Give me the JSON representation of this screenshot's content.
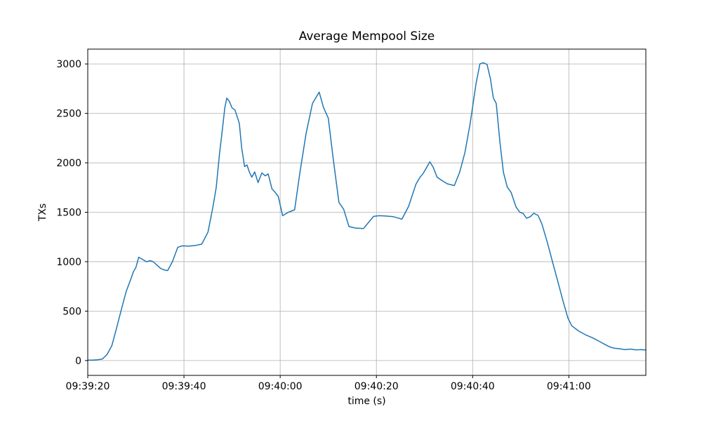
{
  "figure": {
    "background": "#ffffff"
  },
  "chart_data": {
    "type": "line",
    "title": "Average Mempool Size",
    "xlabel": "time (s)",
    "ylabel": "TXs",
    "grid": true,
    "grid_color": "#b0b0b0",
    "line_color": "#1f77b4",
    "legend": "none",
    "xlim": [
      0,
      116
    ],
    "ylim": [
      -150,
      3150
    ],
    "x_ticks": [
      {
        "t": 0,
        "label": "09:39:20"
      },
      {
        "t": 20,
        "label": "09:39:40"
      },
      {
        "t": 40,
        "label": "09:40:00"
      },
      {
        "t": 60,
        "label": "09:40:20"
      },
      {
        "t": 80,
        "label": "09:40:40"
      },
      {
        "t": 100,
        "label": "09:41:00"
      }
    ],
    "y_ticks": [
      0,
      500,
      1000,
      1500,
      2000,
      2500,
      3000
    ],
    "x_unit": "seconds since 09:39:20",
    "series": [
      {
        "name": "average-mempool-size",
        "points": [
          [
            0,
            5
          ],
          [
            1,
            5
          ],
          [
            2,
            8
          ],
          [
            3,
            15
          ],
          [
            4,
            60
          ],
          [
            5,
            150
          ],
          [
            6,
            330
          ],
          [
            7,
            520
          ],
          [
            8,
            700
          ],
          [
            9,
            830
          ],
          [
            9.5,
            900
          ],
          [
            10,
            940
          ],
          [
            10.6,
            1045
          ],
          [
            11.5,
            1020
          ],
          [
            12.2,
            1000
          ],
          [
            13,
            1010
          ],
          [
            13.6,
            1000
          ],
          [
            14.5,
            960
          ],
          [
            15.2,
            930
          ],
          [
            16,
            915
          ],
          [
            16.6,
            910
          ],
          [
            17.6,
            1000
          ],
          [
            18.7,
            1145
          ],
          [
            19.6,
            1160
          ],
          [
            21,
            1158
          ],
          [
            22.5,
            1165
          ],
          [
            23.7,
            1178
          ],
          [
            25,
            1300
          ],
          [
            26,
            1550
          ],
          [
            26.7,
            1750
          ],
          [
            27.4,
            2100
          ],
          [
            27.9,
            2300
          ],
          [
            28.5,
            2560
          ],
          [
            28.9,
            2655
          ],
          [
            29.4,
            2625
          ],
          [
            30,
            2555
          ],
          [
            30.6,
            2535
          ],
          [
            31.5,
            2400
          ],
          [
            32,
            2150
          ],
          [
            32.6,
            1962
          ],
          [
            33.1,
            1978
          ],
          [
            33.6,
            1905
          ],
          [
            34.1,
            1855
          ],
          [
            34.7,
            1908
          ],
          [
            35.4,
            1800
          ],
          [
            36.2,
            1898
          ],
          [
            36.9,
            1868
          ],
          [
            37.5,
            1888
          ],
          [
            38.3,
            1735
          ],
          [
            38.9,
            1705
          ],
          [
            39.6,
            1660
          ],
          [
            40.5,
            1465
          ],
          [
            41.7,
            1500
          ],
          [
            43,
            1525
          ],
          [
            44.1,
            1900
          ],
          [
            45.4,
            2300
          ],
          [
            46.7,
            2600
          ],
          [
            48.1,
            2715
          ],
          [
            49,
            2560
          ],
          [
            50,
            2450
          ],
          [
            51,
            2050
          ],
          [
            52.2,
            1600
          ],
          [
            53.2,
            1530
          ],
          [
            54.3,
            1355
          ],
          [
            55.6,
            1340
          ],
          [
            57.3,
            1335
          ],
          [
            58.5,
            1405
          ],
          [
            59.4,
            1458
          ],
          [
            60.6,
            1465
          ],
          [
            62,
            1462
          ],
          [
            63.5,
            1455
          ],
          [
            64.5,
            1442
          ],
          [
            65.3,
            1430
          ],
          [
            66.7,
            1560
          ],
          [
            68.2,
            1782
          ],
          [
            69,
            1850
          ],
          [
            69.7,
            1892
          ],
          [
            70.4,
            1950
          ],
          [
            71.1,
            2010
          ],
          [
            71.8,
            1955
          ],
          [
            72.6,
            1855
          ],
          [
            73.6,
            1822
          ],
          [
            74.7,
            1788
          ],
          [
            76.2,
            1770
          ],
          [
            77.3,
            1905
          ],
          [
            78.4,
            2105
          ],
          [
            79.5,
            2400
          ],
          [
            80.7,
            2800
          ],
          [
            81.5,
            3000
          ],
          [
            82.2,
            3012
          ],
          [
            83,
            2995
          ],
          [
            83.7,
            2850
          ],
          [
            84.3,
            2658
          ],
          [
            84.9,
            2600
          ],
          [
            85.7,
            2200
          ],
          [
            86.4,
            1905
          ],
          [
            87.2,
            1755
          ],
          [
            88,
            1700
          ],
          [
            89,
            1555
          ],
          [
            89.8,
            1500
          ],
          [
            90.5,
            1488
          ],
          [
            91.2,
            1440
          ],
          [
            92,
            1455
          ],
          [
            92.7,
            1490
          ],
          [
            93.6,
            1468
          ],
          [
            94.4,
            1380
          ],
          [
            95.5,
            1200
          ],
          [
            96.6,
            1000
          ],
          [
            97.7,
            800
          ],
          [
            98.8,
            600
          ],
          [
            99.8,
            430
          ],
          [
            100.6,
            352
          ],
          [
            102,
            300
          ],
          [
            103.4,
            262
          ],
          [
            105,
            228
          ],
          [
            106.2,
            198
          ],
          [
            107.3,
            168
          ],
          [
            108.4,
            140
          ],
          [
            109.4,
            125
          ],
          [
            110.5,
            120
          ],
          [
            111.6,
            111
          ],
          [
            112.8,
            116
          ],
          [
            113.9,
            108
          ],
          [
            115.1,
            111
          ],
          [
            116,
            106
          ]
        ]
      }
    ]
  }
}
